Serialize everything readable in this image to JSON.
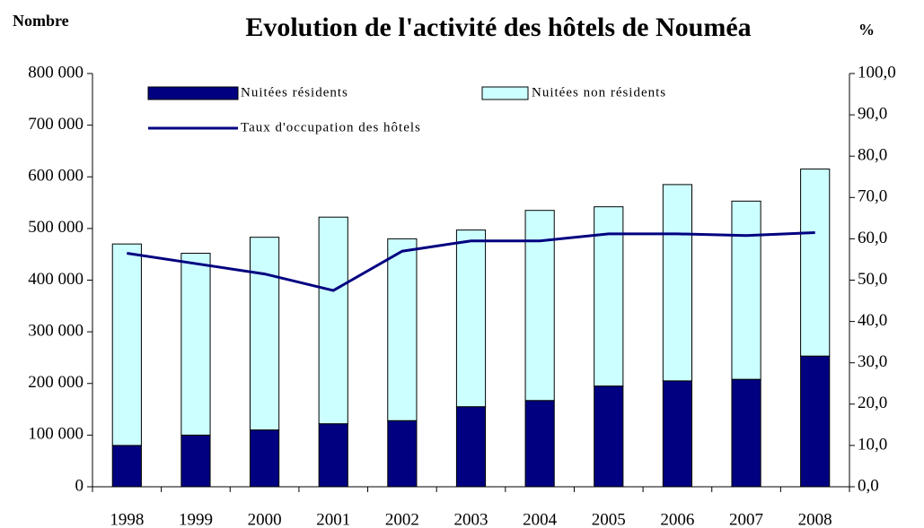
{
  "chart_data": {
    "type": "bar",
    "title": "Evolution de l'activité des hôtels de Nouméa",
    "y_label": "Nombre",
    "y2_label": "%",
    "categories": [
      "1998",
      "1999",
      "2000",
      "2001",
      "2002",
      "2003",
      "2004",
      "2005",
      "2006",
      "2007",
      "2008"
    ],
    "series": [
      {
        "name": "Nuitées résidents",
        "color": "#000080",
        "type": "bar",
        "values": [
          80000,
          100000,
          110000,
          122000,
          128000,
          155000,
          167000,
          195000,
          205000,
          208000,
          253000
        ]
      },
      {
        "name": "Nuitées non résidents",
        "color": "#ccffff",
        "type": "bar",
        "values": [
          390000,
          352000,
          373000,
          400000,
          352000,
          342000,
          368000,
          347000,
          380000,
          345000,
          362000
        ]
      },
      {
        "name": "Taux d'occupation des hôtels",
        "color": "#000080",
        "type": "line",
        "axis": "y2",
        "values": [
          56.5,
          54,
          51.5,
          47.5,
          57,
          59.5,
          59.5,
          61.2,
          61.2,
          60.8,
          61.5
        ]
      }
    ],
    "ylim": [
      0,
      800000
    ],
    "yticks": [
      0,
      {
        "value": 100000,
        "label": "100 000"
      },
      {
        "value": 200000,
        "label": "200 000"
      },
      {
        "value": 300000,
        "label": "300 000"
      },
      {
        "value": 400000,
        "label": "400 000"
      },
      {
        "value": 500000,
        "label": "500 000"
      },
      {
        "value": 600000,
        "label": "600 000"
      },
      {
        "value": 700000,
        "label": "700 000"
      },
      {
        "value": 800000,
        "label": "800 000"
      }
    ],
    "y2lim": [
      0,
      100
    ],
    "y2ticks": [
      {
        "value": 0,
        "label": "0,0"
      },
      {
        "value": 10,
        "label": "10,0"
      },
      {
        "value": 20,
        "label": "20,0"
      },
      {
        "value": 30,
        "label": "30,0"
      },
      {
        "value": 40,
        "label": "40,0"
      },
      {
        "value": 50,
        "label": "50,0"
      },
      {
        "value": 60,
        "label": "60,0"
      },
      {
        "value": 70,
        "label": "70,0"
      },
      {
        "value": 80,
        "label": "80,0"
      },
      {
        "value": 90,
        "label": "90,0"
      },
      {
        "value": 100,
        "label": "100,0"
      }
    ],
    "grid": false
  }
}
